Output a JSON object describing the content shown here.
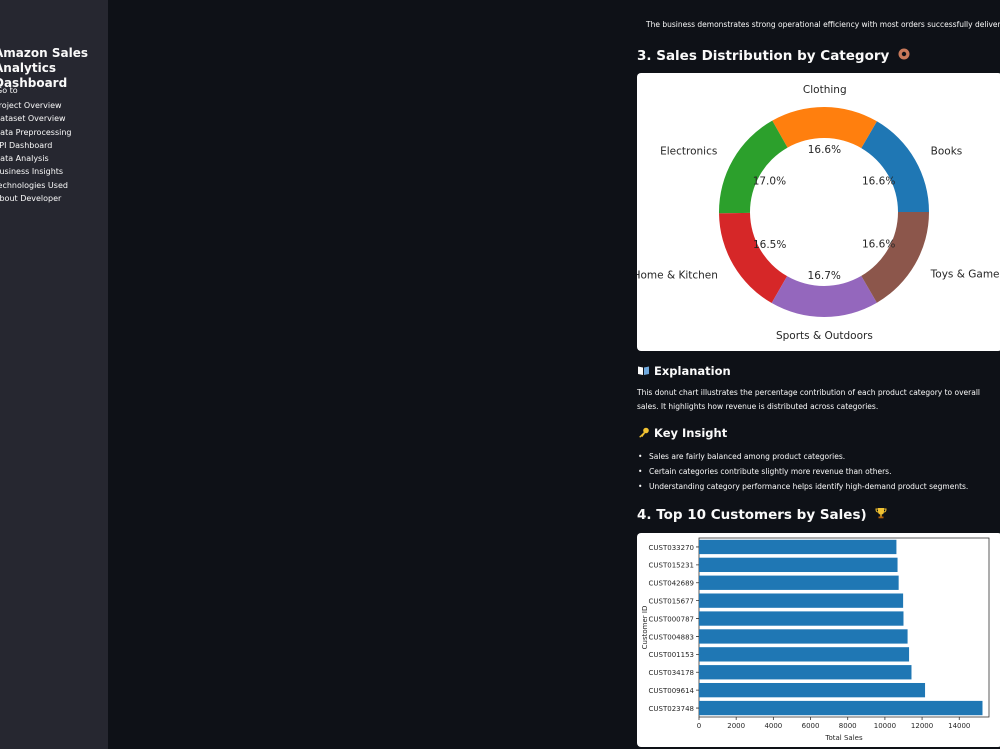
{
  "sidebar": {
    "title": "Amazon Sales Analytics Dashboard",
    "group_label": "Go to",
    "items": [
      {
        "label": "Project Overview"
      },
      {
        "label": "Dataset Overview"
      },
      {
        "label": "Data Preprocessing"
      },
      {
        "label": "KPI Dashboard"
      },
      {
        "label": "Data Analysis"
      },
      {
        "label": "Business Insights"
      },
      {
        "label": "Technologies Used"
      },
      {
        "label": "About Developer"
      }
    ]
  },
  "main": {
    "partial_top_text": "The business demonstrates strong operational efficiency with most orders successfully delivered.",
    "section3": {
      "title": "3. Sales Distribution by Category",
      "icon": "donut-emoji-icon",
      "explanation_heading": "Explanation",
      "explanation_icon": "book-icon",
      "explanation_text": "This donut chart illustrates the percentage contribution of each product category to overall sales. It highlights how revenue is distributed across categories.",
      "insight_heading": "Key Insight",
      "insight_icon": "key-icon",
      "insights": [
        "Sales are fairly balanced among product categories.",
        "Certain categories contribute slightly more revenue than others.",
        "Understanding category performance helps identify high-demand product segments."
      ]
    },
    "section4": {
      "title": "4. Top 10 Customers by Sales)",
      "icon": "trophy-icon"
    }
  },
  "chart_data": [
    {
      "type": "pie",
      "donut": true,
      "title": "",
      "slices": [
        {
          "label": "Books",
          "value": 16.6,
          "pct_label": "16.6%",
          "color": "#1f77b4"
        },
        {
          "label": "Clothing",
          "value": 16.6,
          "pct_label": "16.6%",
          "color": "#ff7f0e"
        },
        {
          "label": "Electronics",
          "value": 17.0,
          "pct_label": "17.0%",
          "color": "#2ca02c"
        },
        {
          "label": "Home & Kitchen",
          "value": 16.5,
          "pct_label": "16.5%",
          "color": "#d62728"
        },
        {
          "label": "Sports & Outdoors",
          "value": 16.7,
          "pct_label": "16.7%",
          "color": "#9467bd"
        },
        {
          "label": "Toys & Games",
          "value": 16.6,
          "pct_label": "16.6%",
          "color": "#8c564b"
        }
      ]
    },
    {
      "type": "bar",
      "orientation": "horizontal",
      "xlabel": "Total Sales",
      "ylabel": "Customer ID",
      "xlim": [
        0,
        15600
      ],
      "xticks": [
        0,
        2000,
        4000,
        6000,
        8000,
        10000,
        12000,
        14000
      ],
      "bar_color": "#1f77b4",
      "categories": [
        "CUST033270",
        "CUST015231",
        "CUST042689",
        "CUST015677",
        "CUST000787",
        "CUST004883",
        "CUST001153",
        "CUST034178",
        "CUST009614",
        "CUST023748"
      ],
      "values": [
        10620,
        10680,
        10740,
        10980,
        11000,
        11220,
        11300,
        11430,
        12160,
        15250
      ]
    }
  ]
}
